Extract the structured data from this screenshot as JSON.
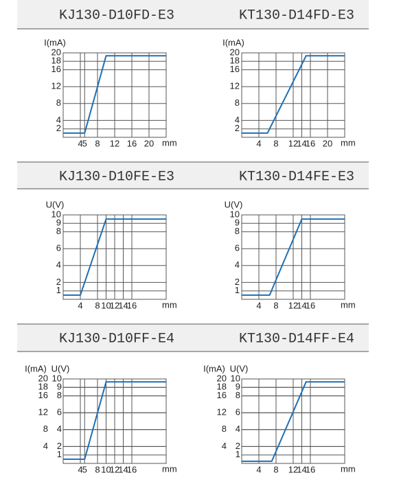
{
  "chart_data": [
    {
      "type": "line",
      "title": "KJ130-D10FD-E3",
      "ylabel": "I(mA)",
      "xlabel": "mm",
      "x": [
        0,
        5,
        10,
        24
      ],
      "series": [
        {
          "color": "#1f6fb5",
          "values": [
            1,
            1,
            19.3,
            19.3
          ]
        }
      ],
      "xlim": [
        0,
        24
      ],
      "ylim": [
        0,
        20
      ],
      "xticks": [
        4,
        5,
        8,
        12,
        16,
        20
      ],
      "yticks": [
        2,
        4,
        8,
        12,
        16,
        18,
        20
      ],
      "grid": true
    },
    {
      "type": "line",
      "title": "KT130-D14FD-E3",
      "ylabel": "I(mA)",
      "xlabel": "mm",
      "x": [
        0,
        6,
        15,
        24
      ],
      "series": [
        {
          "color": "#1f6fb5",
          "values": [
            1,
            1,
            19.3,
            19.3
          ]
        }
      ],
      "xlim": [
        0,
        24
      ],
      "ylim": [
        0,
        20
      ],
      "xticks": [
        4,
        8,
        12,
        14,
        16,
        20
      ],
      "yticks": [
        2,
        4,
        8,
        12,
        16,
        18,
        20
      ],
      "grid": true
    },
    {
      "type": "line",
      "title": "KJ130-D10FE-E3",
      "ylabel": "U(V)",
      "xlabel": "mm",
      "x": [
        0,
        4,
        10,
        24
      ],
      "series": [
        {
          "color": "#1f6fb5",
          "values": [
            0.5,
            0.5,
            9.5,
            9.5
          ]
        }
      ],
      "xlim": [
        0,
        24
      ],
      "ylim": [
        0,
        10
      ],
      "xticks": [
        4,
        8,
        10,
        12,
        14,
        16
      ],
      "yticks": [
        1,
        2,
        4,
        6,
        8,
        9,
        10
      ],
      "grid": true
    },
    {
      "type": "line",
      "title": "KT130-D14FE-E3",
      "ylabel": "U(V)",
      "xlabel": "mm",
      "x": [
        0,
        6.5,
        14,
        24
      ],
      "series": [
        {
          "color": "#1f6fb5",
          "values": [
            0.5,
            0.5,
            9.5,
            9.5
          ]
        }
      ],
      "xlim": [
        0,
        24
      ],
      "ylim": [
        0,
        10
      ],
      "xticks": [
        4,
        8,
        12,
        14,
        16
      ],
      "yticks": [
        1,
        2,
        4,
        6,
        8,
        9,
        10
      ],
      "grid": true
    },
    {
      "type": "line",
      "title": "KJ130-D10FF-E4",
      "ylabel": "I(mA)",
      "y2label": "U(V)",
      "xlabel": "mm",
      "x": [
        0,
        5,
        10,
        24
      ],
      "series": [
        {
          "color": "#1f6fb5",
          "values": [
            1,
            1,
            19.3,
            19.3
          ]
        }
      ],
      "xlim": [
        0,
        24
      ],
      "ylim": [
        0,
        20
      ],
      "y2lim": [
        0,
        10
      ],
      "xticks": [
        4,
        5,
        8,
        10,
        12,
        14,
        16
      ],
      "yticks": [
        4,
        8,
        12,
        16,
        18,
        20
      ],
      "y2ticks": [
        1,
        2,
        4,
        6,
        8,
        9,
        10
      ],
      "grid": true
    },
    {
      "type": "line",
      "title": "KT130-D14FF-E4",
      "ylabel": "I(mA)",
      "y2label": "U(V)",
      "xlabel": "mm",
      "x": [
        0,
        7,
        15,
        24
      ],
      "series": [
        {
          "color": "#1f6fb5",
          "values": [
            0.5,
            0.5,
            19.3,
            19.3
          ]
        }
      ],
      "xlim": [
        0,
        24
      ],
      "ylim": [
        0,
        20
      ],
      "y2lim": [
        0,
        10
      ],
      "xticks": [
        4,
        8,
        12,
        14,
        16
      ],
      "yticks": [
        4,
        8,
        12,
        16,
        18,
        20
      ],
      "y2ticks": [
        1,
        2,
        4,
        6,
        8,
        9,
        10
      ],
      "grid": true
    }
  ]
}
